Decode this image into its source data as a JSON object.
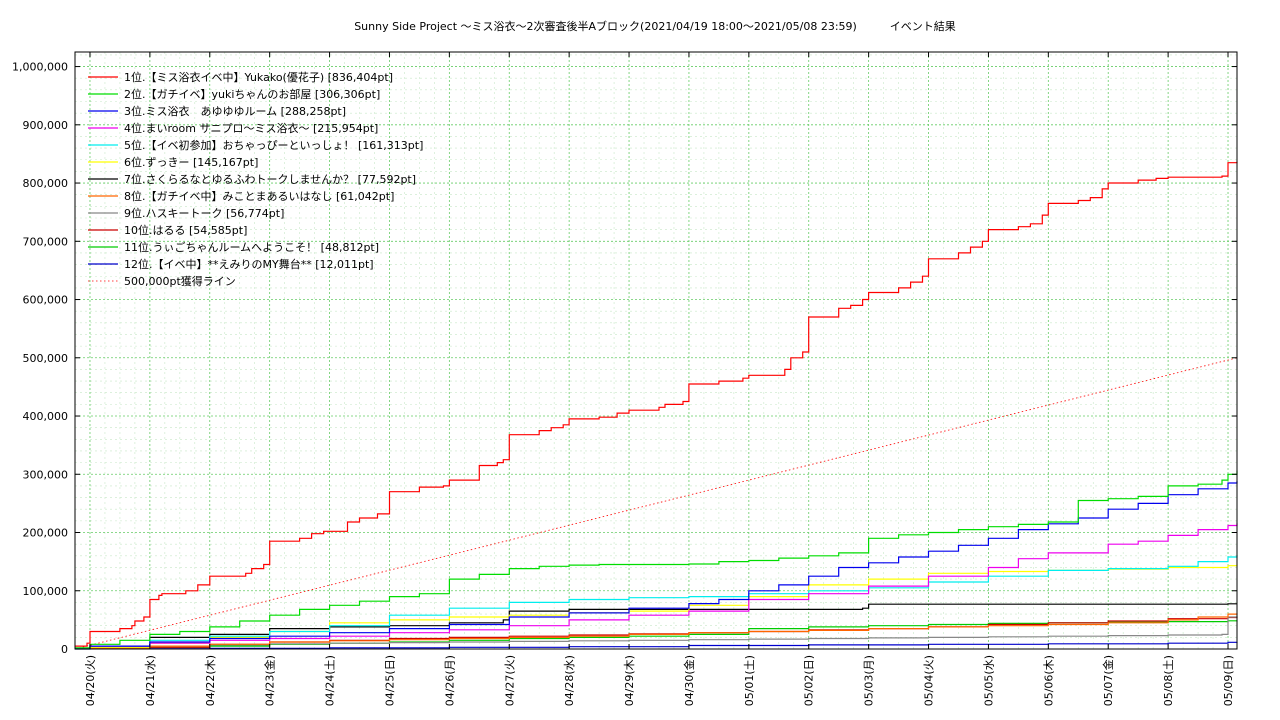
{
  "chart_data": {
    "type": "line",
    "title": "Sunny Side Project 〜ミス浴衣〜2次審査後半Aブロック(2021/04/19 18:00〜2021/05/08 23:59)　　　イベント結果",
    "xlabel": "",
    "ylabel": "",
    "x_tick_labels": [
      "04/20(火)",
      "04/21(水)",
      "04/22(木)",
      "04/23(金)",
      "04/24(土)",
      "04/25(日)",
      "04/26(月)",
      "04/27(火)",
      "04/28(水)",
      "04/29(木)",
      "04/30(金)",
      "05/01(土)",
      "05/02(日)",
      "05/03(月)",
      "05/04(火)",
      "05/05(水)",
      "05/06(木)",
      "05/07(金)",
      "05/08(土)",
      "05/09(日)"
    ],
    "x_tick_positions": [
      0,
      1,
      2,
      3,
      4,
      5,
      6,
      7,
      8,
      9,
      10,
      11,
      12,
      13,
      14,
      15,
      16,
      17,
      18,
      19
    ],
    "xlim": [
      -0.25,
      19.15
    ],
    "y_tick_labels": [
      "0",
      "100,000",
      "200,000",
      "300,000",
      "400,000",
      "500,000",
      "600,000",
      "700,000",
      "800,000",
      "900,000",
      "1,000,000"
    ],
    "y_tick_values": [
      0,
      100000,
      200000,
      300000,
      400000,
      500000,
      600000,
      700000,
      800000,
      900000,
      1000000
    ],
    "ylim": [
      0,
      1025000
    ],
    "grid": true,
    "legend_position": "top-left",
    "series": [
      {
        "name": "1位.【ミス浴衣イベ中】Yukako(優花子) [836,404pt]",
        "color": "#ff0000",
        "x": [
          -0.25,
          -0.05,
          0.0,
          0.5,
          0.7,
          0.75,
          0.9,
          1.0,
          1.15,
          1.2,
          1.6,
          1.8,
          2.0,
          2.6,
          2.7,
          2.9,
          3.0,
          3.5,
          3.7,
          3.9,
          4.3,
          4.5,
          4.8,
          5.0,
          5.5,
          5.9,
          6.0,
          6.5,
          6.8,
          6.9,
          7.0,
          7.5,
          7.7,
          7.9,
          8.0,
          8.5,
          8.8,
          9.0,
          9.5,
          9.6,
          9.9,
          10.0,
          10.5,
          10.9,
          11.0,
          11.6,
          11.7,
          11.9,
          12.0,
          12.5,
          12.7,
          12.9,
          13.0,
          13.5,
          13.7,
          13.9,
          14.0,
          14.5,
          14.7,
          14.9,
          15.0,
          15.5,
          15.7,
          15.9,
          16.0,
          16.5,
          16.7,
          16.9,
          17.0,
          17.5,
          17.8,
          18.0,
          18.9,
          19.0,
          19.15
        ],
        "y": [
          5000,
          10000,
          30000,
          35000,
          40000,
          48000,
          55000,
          85000,
          92000,
          95000,
          100000,
          110000,
          125000,
          130000,
          138000,
          145000,
          185000,
          190000,
          198000,
          202000,
          218000,
          225000,
          232000,
          270000,
          278000,
          280000,
          290000,
          315000,
          320000,
          325000,
          368000,
          375000,
          380000,
          385000,
          395000,
          398000,
          405000,
          410000,
          415000,
          420000,
          425000,
          455000,
          460000,
          465000,
          470000,
          480000,
          500000,
          510000,
          570000,
          585000,
          590000,
          600000,
          612000,
          620000,
          630000,
          640000,
          670000,
          680000,
          690000,
          700000,
          720000,
          725000,
          730000,
          745000,
          765000,
          770000,
          775000,
          790000,
          800000,
          805000,
          808000,
          810000,
          812000,
          835000,
          836404
        ]
      },
      {
        "name": "2位.【ガチイベ】yukiちゃんのお部屋 [306,306pt]",
        "color": "#00dd00",
        "x": [
          -0.25,
          0.0,
          0.5,
          1.0,
          1.5,
          2.0,
          2.5,
          3.0,
          3.5,
          4.0,
          4.5,
          5.0,
          5.5,
          6.0,
          6.5,
          7.0,
          7.5,
          8.0,
          8.5,
          9.0,
          9.5,
          10.0,
          10.5,
          11.0,
          11.5,
          12.0,
          12.5,
          13.0,
          13.5,
          14.0,
          14.5,
          15.0,
          15.5,
          16.0,
          16.5,
          17.0,
          17.5,
          18.0,
          18.5,
          18.9,
          19.0,
          19.15
        ],
        "y": [
          2000,
          8000,
          15000,
          25000,
          30000,
          38000,
          48000,
          58000,
          68000,
          75000,
          82000,
          90000,
          95000,
          120000,
          128000,
          138000,
          142000,
          144000,
          145000,
          145000,
          145000,
          146000,
          150000,
          152000,
          156000,
          160000,
          165000,
          190000,
          196000,
          200000,
          205000,
          210000,
          214000,
          218000,
          255000,
          258000,
          262000,
          280000,
          283000,
          290000,
          300000,
          306306
        ]
      },
      {
        "name": "3位.ミス浴衣　あゆゆゆルーム [288,258pt]",
        "color": "#0000ee",
        "x": [
          -0.25,
          0.0,
          1.0,
          2.0,
          3.0,
          4.0,
          5.0,
          6.0,
          7.0,
          8.0,
          9.0,
          10.0,
          10.5,
          11.0,
          11.5,
          12.0,
          12.5,
          13.0,
          13.5,
          14.0,
          14.5,
          15.0,
          15.5,
          16.0,
          16.5,
          17.0,
          17.5,
          18.0,
          18.5,
          19.0,
          19.15
        ],
        "y": [
          1000,
          5000,
          12000,
          18000,
          22000,
          28000,
          35000,
          42000,
          55000,
          62000,
          70000,
          78000,
          85000,
          100000,
          110000,
          125000,
          140000,
          148000,
          158000,
          168000,
          178000,
          190000,
          205000,
          215000,
          225000,
          240000,
          250000,
          265000,
          275000,
          285000,
          288258
        ]
      },
      {
        "name": "4位.まいroom サニプロ〜ミス浴衣〜 [215,954pt]",
        "color": "#ee00ee",
        "x": [
          -0.25,
          0.0,
          1.0,
          2.0,
          3.0,
          4.0,
          5.0,
          6.0,
          7.0,
          8.0,
          9.0,
          10.0,
          11.0,
          12.0,
          13.0,
          14.0,
          15.0,
          15.5,
          16.0,
          17.0,
          17.5,
          18.0,
          18.5,
          19.0,
          19.15
        ],
        "y": [
          1000,
          5000,
          10000,
          15000,
          18000,
          22000,
          28000,
          33000,
          40000,
          50000,
          58000,
          65000,
          85000,
          95000,
          108000,
          125000,
          140000,
          155000,
          165000,
          180000,
          185000,
          195000,
          205000,
          212000,
          215954
        ]
      },
      {
        "name": "5位.【イベ初参加】おちゃっぴーといっしょ！ [161,313pt]",
        "color": "#00eeee",
        "x": [
          -0.25,
          0.0,
          1.0,
          2.0,
          3.0,
          4.0,
          5.0,
          6.0,
          7.0,
          8.0,
          9.0,
          10.0,
          11.0,
          12.0,
          13.0,
          14.0,
          15.0,
          16.0,
          17.0,
          18.0,
          18.5,
          19.0,
          19.15
        ],
        "y": [
          1000,
          5000,
          15000,
          22000,
          30000,
          40000,
          58000,
          70000,
          80000,
          85000,
          88000,
          90000,
          95000,
          100000,
          105000,
          115000,
          125000,
          135000,
          138000,
          142000,
          150000,
          158000,
          161313
        ]
      },
      {
        "name": "6位.ずっきー [145,167pt]",
        "color": "#ffff00",
        "x": [
          -0.25,
          0.0,
          1.0,
          2.0,
          3.0,
          4.0,
          5.0,
          6.0,
          7.0,
          8.0,
          9.0,
          10.0,
          11.0,
          12.0,
          13.0,
          14.0,
          15.0,
          16.0,
          17.0,
          18.0,
          19.0,
          19.15
        ],
        "y": [
          1000,
          3000,
          10000,
          20000,
          30000,
          45000,
          50000,
          55000,
          58000,
          62000,
          65000,
          75000,
          90000,
          110000,
          120000,
          130000,
          133000,
          135000,
          137000,
          140000,
          143000,
          145167
        ]
      },
      {
        "name": "7位.さくらるなとゆるふわトークしませんか？ [77,592pt]",
        "color": "#000000",
        "x": [
          -0.25,
          0.0,
          1.0,
          2.0,
          3.0,
          4.0,
          5.0,
          6.0,
          6.9,
          7.0,
          8.0,
          9.0,
          10.0,
          11.0,
          12.0,
          12.9,
          13.0,
          14.0,
          15.0,
          16.0,
          17.0,
          18.0,
          19.0,
          19.15
        ],
        "y": [
          1000,
          5000,
          20000,
          25000,
          35000,
          38000,
          40000,
          45000,
          50000,
          65000,
          68000,
          68000,
          68000,
          68000,
          68000,
          70000,
          77000,
          77000,
          77000,
          77000,
          77000,
          77000,
          77592,
          77592
        ]
      },
      {
        "name": "8位.【ガチイベ中】みことまあるいはなし [61,042pt]",
        "color": "#ff6600",
        "x": [
          -0.25,
          0.0,
          1.0,
          2.0,
          3.0,
          4.0,
          5.0,
          6.0,
          7.0,
          8.0,
          9.0,
          10.0,
          11.0,
          12.0,
          13.0,
          14.0,
          15.0,
          16.0,
          17.0,
          18.0,
          18.5,
          19.0,
          19.15
        ],
        "y": [
          500,
          2000,
          5000,
          8000,
          12000,
          14000,
          16000,
          18000,
          20000,
          22000,
          25000,
          28000,
          30000,
          32000,
          35000,
          38000,
          40000,
          42000,
          45000,
          50000,
          55000,
          60000,
          61042
        ]
      },
      {
        "name": "9位.ハスキートーク [56,774pt]",
        "color": "#888888",
        "x": [
          -0.25,
          0.0,
          1.0,
          2.0,
          3.0,
          4.0,
          5.0,
          6.0,
          7.0,
          8.0,
          9.0,
          10.0,
          11.0,
          12.0,
          13.0,
          14.0,
          15.0,
          16.0,
          17.0,
          18.0,
          18.9,
          19.0,
          19.15
        ],
        "y": [
          500,
          2000,
          5000,
          7000,
          9000,
          10000,
          11000,
          12000,
          13000,
          14000,
          15000,
          16000,
          17000,
          18000,
          19000,
          20000,
          21000,
          22000,
          23000,
          24000,
          25000,
          55000,
          56774
        ]
      },
      {
        "name": "10位.はるる [54,585pt]",
        "color": "#cc0000",
        "x": [
          -0.25,
          0.0,
          1.0,
          2.0,
          3.0,
          4.0,
          5.0,
          6.0,
          7.0,
          8.0,
          9.0,
          10.0,
          11.0,
          12.0,
          13.0,
          14.0,
          15.0,
          16.0,
          17.0,
          18.0,
          19.0,
          19.15
        ],
        "y": [
          500,
          1000,
          3000,
          8000,
          12000,
          15000,
          18000,
          20000,
          22000,
          24000,
          26000,
          28000,
          30000,
          33000,
          35000,
          38000,
          42000,
          45000,
          48000,
          52000,
          54000,
          54585
        ]
      },
      {
        "name": "11位.うぃごちゃんルームへようこそ！ [48,812pt]",
        "color": "#00cc00",
        "x": [
          -0.25,
          0.0,
          1.0,
          2.0,
          3.0,
          4.0,
          5.0,
          6.0,
          7.0,
          8.0,
          9.0,
          10.0,
          11.0,
          12.0,
          13.0,
          14.0,
          15.0,
          16.0,
          17.0,
          18.0,
          19.0,
          19.15
        ],
        "y": [
          500,
          1000,
          3000,
          5000,
          8000,
          10000,
          12000,
          15000,
          18000,
          20000,
          22000,
          25000,
          35000,
          38000,
          40000,
          42000,
          44000,
          45000,
          46000,
          47000,
          48500,
          48812
        ]
      },
      {
        "name": "12位.【イベ中】**えみりのMY舞台** [12,011pt]",
        "color": "#0000cc",
        "x": [
          -0.25,
          0.0,
          2.0,
          4.0,
          6.0,
          8.0,
          10.0,
          12.0,
          14.0,
          16.0,
          18.0,
          19.0,
          19.15
        ],
        "y": [
          0,
          500,
          1000,
          2000,
          3000,
          4000,
          6000,
          7000,
          8000,
          9000,
          10000,
          11500,
          12011
        ]
      },
      {
        "name": "500,000pt獲得ライン",
        "color": "#ff0000",
        "dashed": true,
        "x": [
          -0.25,
          19.15
        ],
        "y": [
          0,
          500000
        ]
      }
    ]
  }
}
